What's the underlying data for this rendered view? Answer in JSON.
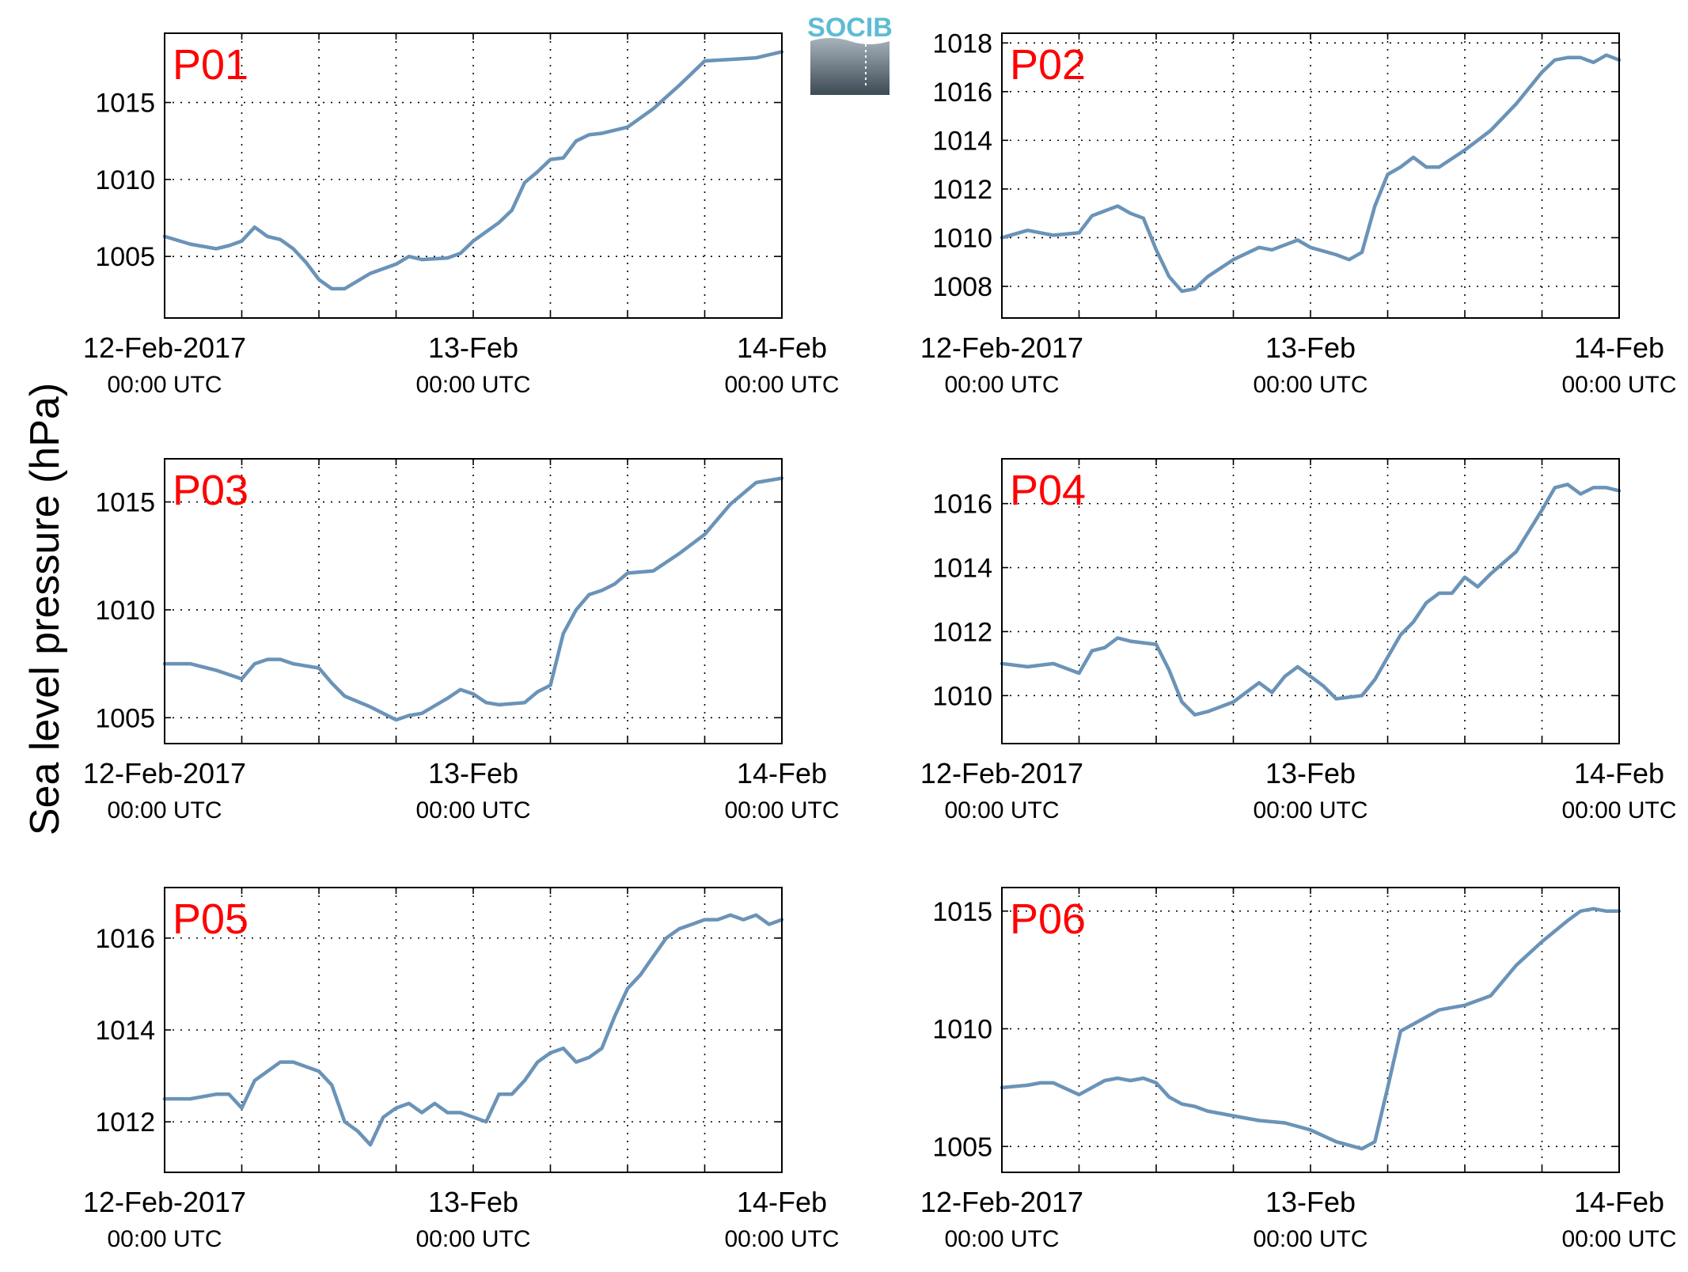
{
  "figure": {
    "ylabel": "Sea level pressure (hPa)",
    "logo_text": "SOCIB",
    "line_color": "#6b93b8",
    "panel_label_color": "#ff0000"
  },
  "chart_data": [
    {
      "type": "line",
      "title": "P01",
      "x_range": [
        "2017-02-12 00:00",
        "2017-02-14 00:00"
      ],
      "x_unit": "hours since 12-Feb-2017 00:00 UTC",
      "ylim": [
        1001.0,
        1019.5
      ],
      "yticks": [
        1005,
        1010,
        1015
      ],
      "grid": true,
      "xticks": [
        {
          "label": "12-Feb-2017",
          "sub": "00:00 UTC"
        },
        {
          "label": "13-Feb",
          "sub": "00:00 UTC"
        },
        {
          "label": "14-Feb",
          "sub": "00:00 UTC"
        }
      ],
      "series": [
        {
          "x": [
            0,
            2,
            4,
            5,
            6,
            7,
            8,
            9,
            10,
            11,
            12,
            13,
            14,
            16,
            18,
            19,
            20,
            22,
            23,
            24,
            26,
            27,
            28,
            29,
            30,
            31,
            32,
            33,
            34,
            36,
            38,
            40,
            41,
            42,
            44,
            46,
            48
          ],
          "y": [
            1006.3,
            1005.8,
            1005.5,
            1005.7,
            1006.0,
            1006.9,
            1006.3,
            1006.1,
            1005.5,
            1004.6,
            1003.5,
            1002.9,
            1002.9,
            1003.9,
            1004.5,
            1005.0,
            1004.8,
            1004.9,
            1005.2,
            1006.0,
            1007.2,
            1008.0,
            1009.8,
            1010.5,
            1011.3,
            1011.4,
            1012.5,
            1012.9,
            1013.0,
            1013.4,
            1014.6,
            1016.1,
            1016.9,
            1017.7,
            1017.8,
            1017.9,
            1018.3
          ]
        }
      ]
    },
    {
      "type": "line",
      "title": "P02",
      "x_range": [
        "2017-02-12 00:00",
        "2017-02-14 00:00"
      ],
      "x_unit": "hours since 12-Feb-2017 00:00 UTC",
      "ylim": [
        1006.7,
        1018.4
      ],
      "yticks": [
        1008,
        1010,
        1012,
        1014,
        1016,
        1018
      ],
      "grid": true,
      "xticks": [
        {
          "label": "12-Feb-2017",
          "sub": "00:00 UTC"
        },
        {
          "label": "13-Feb",
          "sub": "00:00 UTC"
        },
        {
          "label": "14-Feb",
          "sub": "00:00 UTC"
        }
      ],
      "series": [
        {
          "x": [
            0,
            2,
            4,
            6,
            7,
            8,
            9,
            10,
            11,
            12,
            13,
            14,
            15,
            16,
            18,
            20,
            21,
            22,
            23,
            24,
            26,
            27,
            28,
            29,
            30,
            31,
            32,
            33,
            34,
            36,
            38,
            40,
            42,
            43,
            44,
            45,
            46,
            47,
            48
          ],
          "y": [
            1010.0,
            1010.3,
            1010.1,
            1010.2,
            1010.9,
            1011.1,
            1011.3,
            1011.0,
            1010.8,
            1009.5,
            1008.4,
            1007.8,
            1007.9,
            1008.4,
            1009.1,
            1009.6,
            1009.5,
            1009.7,
            1009.9,
            1009.6,
            1009.3,
            1009.1,
            1009.4,
            1011.3,
            1012.6,
            1012.9,
            1013.3,
            1012.9,
            1012.9,
            1013.6,
            1014.4,
            1015.5,
            1016.8,
            1017.3,
            1017.4,
            1017.4,
            1017.2,
            1017.5,
            1017.3
          ]
        }
      ]
    },
    {
      "type": "line",
      "title": "P03",
      "x_range": [
        "2017-02-12 00:00",
        "2017-02-14 00:00"
      ],
      "x_unit": "hours since 12-Feb-2017 00:00 UTC",
      "ylim": [
        1003.8,
        1017.0
      ],
      "yticks": [
        1005,
        1010,
        1015
      ],
      "grid": true,
      "xticks": [
        {
          "label": "12-Feb-2017",
          "sub": "00:00 UTC"
        },
        {
          "label": "13-Feb",
          "sub": "00:00 UTC"
        },
        {
          "label": "14-Feb",
          "sub": "00:00 UTC"
        }
      ],
      "series": [
        {
          "x": [
            0,
            2,
            4,
            6,
            7,
            8,
            9,
            10,
            12,
            13,
            14,
            16,
            18,
            19,
            20,
            22,
            23,
            24,
            25,
            26,
            28,
            29,
            30,
            31,
            32,
            33,
            34,
            35,
            36,
            38,
            40,
            42,
            44,
            46,
            48
          ],
          "y": [
            1007.5,
            1007.5,
            1007.2,
            1006.8,
            1007.5,
            1007.7,
            1007.7,
            1007.5,
            1007.3,
            1006.6,
            1006.0,
            1005.5,
            1004.9,
            1005.1,
            1005.2,
            1005.9,
            1006.3,
            1006.1,
            1005.7,
            1005.6,
            1005.7,
            1006.2,
            1006.5,
            1008.9,
            1010.0,
            1010.7,
            1010.9,
            1011.2,
            1011.7,
            1011.8,
            1012.6,
            1013.5,
            1014.9,
            1015.9,
            1016.1
          ]
        }
      ]
    },
    {
      "type": "line",
      "title": "P04",
      "x_range": [
        "2017-02-12 00:00",
        "2017-02-14 00:00"
      ],
      "x_unit": "hours since 12-Feb-2017 00:00 UTC",
      "ylim": [
        1008.5,
        1017.4
      ],
      "yticks": [
        1010,
        1012,
        1014,
        1016
      ],
      "grid": true,
      "xticks": [
        {
          "label": "12-Feb-2017",
          "sub": "00:00 UTC"
        },
        {
          "label": "13-Feb",
          "sub": "00:00 UTC"
        },
        {
          "label": "14-Feb",
          "sub": "00:00 UTC"
        }
      ],
      "series": [
        {
          "x": [
            0,
            2,
            4,
            6,
            7,
            8,
            9,
            10,
            12,
            13,
            14,
            15,
            16,
            18,
            20,
            21,
            22,
            23,
            24,
            25,
            26,
            28,
            29,
            30,
            31,
            32,
            33,
            34,
            35,
            36,
            37,
            38,
            40,
            42,
            43,
            44,
            45,
            46,
            47,
            48
          ],
          "y": [
            1011.0,
            1010.9,
            1011.0,
            1010.7,
            1011.4,
            1011.5,
            1011.8,
            1011.7,
            1011.6,
            1010.8,
            1009.8,
            1009.4,
            1009.5,
            1009.8,
            1010.4,
            1010.1,
            1010.6,
            1010.9,
            1010.6,
            1010.3,
            1009.9,
            1010.0,
            1010.5,
            1011.2,
            1011.9,
            1012.3,
            1012.9,
            1013.2,
            1013.2,
            1013.7,
            1013.4,
            1013.8,
            1014.5,
            1015.8,
            1016.5,
            1016.6,
            1016.3,
            1016.5,
            1016.5,
            1016.4
          ]
        }
      ]
    },
    {
      "type": "line",
      "title": "P05",
      "x_range": [
        "2017-02-12 00:00",
        "2017-02-14 00:00"
      ],
      "x_unit": "hours since 12-Feb-2017 00:00 UTC",
      "ylim": [
        1010.9,
        1017.1
      ],
      "yticks": [
        1012,
        1014,
        1016
      ],
      "grid": true,
      "xticks": [
        {
          "label": "12-Feb-2017",
          "sub": "00:00 UTC"
        },
        {
          "label": "13-Feb",
          "sub": "00:00 UTC"
        },
        {
          "label": "14-Feb",
          "sub": "00:00 UTC"
        }
      ],
      "series": [
        {
          "x": [
            0,
            2,
            4,
            5,
            6,
            7,
            8,
            9,
            10,
            11,
            12,
            13,
            14,
            15,
            16,
            17,
            18,
            19,
            20,
            21,
            22,
            23,
            24,
            25,
            26,
            27,
            28,
            29,
            30,
            31,
            32,
            33,
            34,
            35,
            36,
            37,
            38,
            39,
            40,
            41,
            42,
            43,
            44,
            45,
            46,
            47,
            48
          ],
          "y": [
            1012.5,
            1012.5,
            1012.6,
            1012.6,
            1012.3,
            1012.9,
            1013.1,
            1013.3,
            1013.3,
            1013.2,
            1013.1,
            1012.8,
            1012.0,
            1011.8,
            1011.5,
            1012.1,
            1012.3,
            1012.4,
            1012.2,
            1012.4,
            1012.2,
            1012.2,
            1012.1,
            1012.0,
            1012.6,
            1012.6,
            1012.9,
            1013.3,
            1013.5,
            1013.6,
            1013.3,
            1013.4,
            1013.6,
            1014.3,
            1014.9,
            1015.2,
            1015.6,
            1016.0,
            1016.2,
            1016.3,
            1016.4,
            1016.4,
            1016.5,
            1016.4,
            1016.5,
            1016.3,
            1016.4
          ]
        }
      ]
    },
    {
      "type": "line",
      "title": "P06",
      "x_range": [
        "2017-02-12 00:00",
        "2017-02-14 00:00"
      ],
      "x_unit": "hours since 12-Feb-2017 00:00 UTC",
      "ylim": [
        1003.9,
        1016.0
      ],
      "yticks": [
        1005,
        1010,
        1015
      ],
      "grid": true,
      "xticks": [
        {
          "label": "12-Feb-2017",
          "sub": "00:00 UTC"
        },
        {
          "label": "13-Feb",
          "sub": "00:00 UTC"
        },
        {
          "label": "14-Feb",
          "sub": "00:00 UTC"
        }
      ],
      "series": [
        {
          "x": [
            0,
            2,
            3,
            4,
            6,
            7,
            8,
            9,
            10,
            11,
            12,
            13,
            14,
            15,
            16,
            18,
            20,
            22,
            24,
            26,
            28,
            29,
            30,
            31,
            32,
            33,
            34,
            35,
            36,
            38,
            40,
            42,
            44,
            45,
            46,
            47,
            48
          ],
          "y": [
            1007.5,
            1007.6,
            1007.7,
            1007.7,
            1007.2,
            1007.5,
            1007.8,
            1007.9,
            1007.8,
            1007.9,
            1007.7,
            1007.1,
            1006.8,
            1006.7,
            1006.5,
            1006.3,
            1006.1,
            1006.0,
            1005.7,
            1005.2,
            1004.9,
            1005.2,
            1007.5,
            1009.9,
            1010.2,
            1010.5,
            1010.8,
            1010.9,
            1011.0,
            1011.4,
            1012.7,
            1013.7,
            1014.6,
            1015.0,
            1015.1,
            1015.0,
            1015.0
          ]
        }
      ]
    }
  ]
}
